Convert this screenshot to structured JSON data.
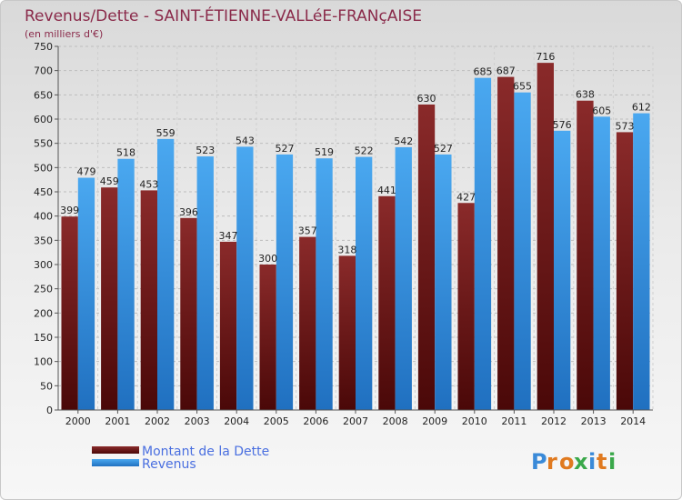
{
  "chart_data": {
    "type": "bar",
    "title": "Revenus/Dette - SAINT-ÉTIENNE-VALLéE-FRANçAISE",
    "subtitle": "(en milliers d'€)",
    "categories": [
      "2000",
      "2001",
      "2002",
      "2003",
      "2004",
      "2005",
      "2006",
      "2007",
      "2008",
      "2009",
      "2010",
      "2011",
      "2012",
      "2013",
      "2014"
    ],
    "series": [
      {
        "name": "Montant de la Dette",
        "color": "#7a1a1a",
        "values": [
          399,
          459,
          453,
          396,
          347,
          300,
          357,
          318,
          441,
          630,
          427,
          687,
          716,
          638,
          573
        ]
      },
      {
        "name": "Revenus",
        "color": "#3a98e0",
        "values": [
          479,
          518,
          559,
          523,
          543,
          527,
          519,
          522,
          542,
          527,
          685,
          655,
          576,
          605,
          612
        ]
      }
    ],
    "ylim": [
      0,
      750
    ],
    "yticks": [
      0,
      50,
      100,
      150,
      200,
      250,
      300,
      350,
      400,
      450,
      500,
      550,
      600,
      650,
      700,
      750
    ],
    "grid": true,
    "legend_position": "bottom-left"
  },
  "watermark": "Proxiti"
}
